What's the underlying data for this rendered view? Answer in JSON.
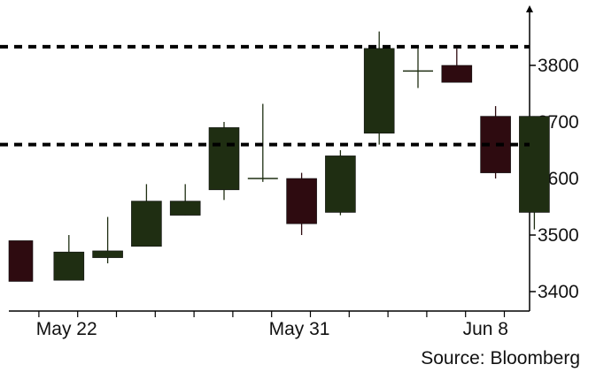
{
  "chart_data": {
    "type": "candlestick",
    "title": "",
    "xlabel": "",
    "ylabel": "",
    "ylim": [
      3380,
      3880
    ],
    "y_ticks": [
      3400,
      3500,
      3600,
      3700,
      3800
    ],
    "x_tick_labels": [
      {
        "label": "May 22",
        "index": 1
      },
      {
        "label": "May 31",
        "index": 7
      },
      {
        "label": "Jun 8",
        "index": 12
      }
    ],
    "reference_lines": [
      3833,
      3660
    ],
    "candles": [
      {
        "open": 3490,
        "high": 3490,
        "low": 3418,
        "close": 3418
      },
      {
        "open": 3420,
        "high": 3500,
        "low": 3420,
        "close": 3470
      },
      {
        "open": 3460,
        "high": 3532,
        "low": 3450,
        "close": 3472
      },
      {
        "open": 3480,
        "high": 3590,
        "low": 3480,
        "close": 3560
      },
      {
        "open": 3535,
        "high": 3590,
        "low": 3535,
        "close": 3560
      },
      {
        "open": 3580,
        "high": 3700,
        "low": 3562,
        "close": 3690
      },
      {
        "open": 3600,
        "high": 3732,
        "low": 3594,
        "close": 3600
      },
      {
        "open": 3600,
        "high": 3610,
        "low": 3500,
        "close": 3520
      },
      {
        "open": 3540,
        "high": 3650,
        "low": 3535,
        "close": 3640
      },
      {
        "open": 3680,
        "high": 3860,
        "low": 3660,
        "close": 3830
      },
      {
        "open": 3790,
        "high": 3830,
        "low": 3760,
        "close": 3790
      },
      {
        "open": 3800,
        "high": 3830,
        "low": 3770,
        "close": 3770
      },
      {
        "open": 3710,
        "high": 3728,
        "low": 3600,
        "close": 3610
      },
      {
        "open": 3540,
        "high": 3710,
        "low": 3510,
        "close": 3710
      }
    ],
    "colors": {
      "up": "#1f2e12",
      "down": "#2e0b10",
      "reference": "#000000",
      "axis": "#000000"
    }
  },
  "footer": {
    "source": "Source: Bloomberg"
  }
}
